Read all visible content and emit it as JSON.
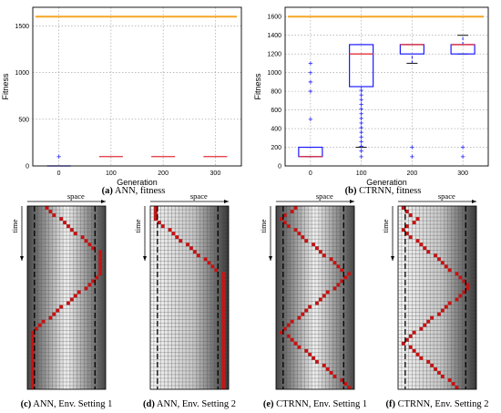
{
  "chart_data": [
    {
      "type": "box",
      "id": "a",
      "ylabel": "Fitness",
      "xlabel": "Generation",
      "x_ticks": [
        "0",
        "100",
        "200",
        "300"
      ],
      "y_ticks": [
        "0",
        "500",
        "1000",
        "1500"
      ],
      "ylim": [
        0,
        1700
      ],
      "grid": true,
      "reference_line": {
        "y": 1600,
        "color": "#f5a623"
      },
      "boxes": [
        {
          "x": "0",
          "median": 0,
          "q1": 0,
          "q3": 0,
          "outliers": [
            100
          ]
        },
        {
          "x": "100",
          "median": 100,
          "q1": 100,
          "q3": 100,
          "outliers": []
        },
        {
          "x": "200",
          "median": 100,
          "q1": 100,
          "q3": 100,
          "outliers": []
        },
        {
          "x": "300",
          "median": 100,
          "q1": 100,
          "q3": 100,
          "outliers": []
        }
      ],
      "caption_label": "(a)",
      "caption_text": "ANN, fitness"
    },
    {
      "type": "box",
      "id": "b",
      "ylabel": "Fitness",
      "xlabel": "Generation",
      "x_ticks": [
        "0",
        "100",
        "200",
        "300"
      ],
      "y_ticks": [
        "0",
        "200",
        "400",
        "600",
        "800",
        "1000",
        "1200",
        "1400",
        "1600"
      ],
      "ylim": [
        0,
        1700
      ],
      "grid": true,
      "reference_line": {
        "y": 1600,
        "color": "#f5a623"
      },
      "boxes": [
        {
          "x": "0",
          "median": 100,
          "q1": 100,
          "q3": 200,
          "whisker_low": 100,
          "whisker_high": 200,
          "outliers": [
            500,
            800,
            900,
            1000,
            1100
          ]
        },
        {
          "x": "100",
          "median": 1200,
          "q1": 850,
          "q3": 1300,
          "whisker_low": 200,
          "whisker_high": 1300,
          "outliers": [
            100,
            160,
            210,
            260,
            310,
            360,
            410,
            460,
            510,
            560,
            610,
            660,
            710,
            760,
            810
          ]
        },
        {
          "x": "200",
          "median": 1300,
          "q1": 1200,
          "q3": 1300,
          "whisker_low": 1100,
          "whisker_high": 1300,
          "outliers": [
            100,
            200
          ]
        },
        {
          "x": "300",
          "median": 1300,
          "q1": 1200,
          "q3": 1300,
          "whisker_low": 1200,
          "whisker_high": 1400,
          "outliers": [
            100,
            200
          ]
        }
      ],
      "caption_label": "(b)",
      "caption_text": "CTRNN, fitness"
    },
    {
      "type": "heatmap",
      "id": "c",
      "space_label": "space",
      "time_label": "time",
      "caption_label": "(c)",
      "caption_text": "ANN, Env. Setting 1",
      "gradient": "dark-edges",
      "trajectory_x": [
        1,
        2,
        3,
        4,
        5,
        5,
        5,
        4,
        3,
        2,
        1,
        0,
        0,
        0,
        0,
        0,
        0
      ]
    },
    {
      "type": "heatmap",
      "id": "d",
      "space_label": "space",
      "time_label": "time",
      "caption_label": "(d)",
      "caption_text": "ANN, Env. Setting 2",
      "gradient": "dark-right",
      "trajectory_x": [
        0,
        0,
        1,
        2,
        3,
        4,
        5,
        5,
        5,
        5,
        5,
        5,
        5,
        5,
        5,
        5,
        5
      ]
    },
    {
      "type": "heatmap",
      "id": "e",
      "space_label": "space",
      "time_label": "time",
      "caption_label": "(e)",
      "caption_text": "CTRNN, Env. Setting 1",
      "gradient": "dark-edges",
      "trajectory_x": [
        1,
        0,
        1,
        2,
        3,
        4,
        5,
        4,
        3,
        2,
        1,
        0,
        1,
        2,
        3,
        4,
        5
      ]
    },
    {
      "type": "heatmap",
      "id": "f",
      "space_label": "space",
      "time_label": "time",
      "caption_label": "(f)",
      "caption_text": "CTRNN, Env. Setting 2",
      "gradient": "dark-right",
      "trajectory_x": [
        0,
        1,
        0,
        1,
        2,
        3,
        4,
        5,
        4,
        3,
        2,
        1,
        0,
        1,
        2,
        3,
        4
      ]
    }
  ]
}
